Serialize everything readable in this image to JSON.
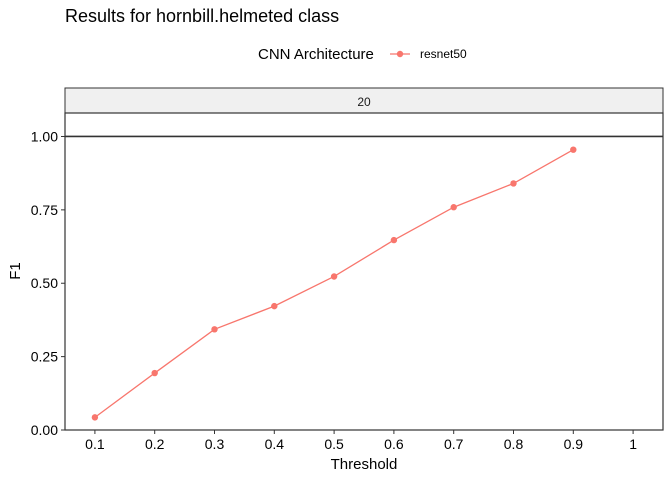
{
  "chart_data": {
    "type": "line",
    "title": "Results for hornbill.helmeted class",
    "xlabel": "Threshold",
    "ylabel": "F1",
    "facet_label": "20",
    "legend": {
      "title": "CNN Architecture",
      "placement": "top"
    },
    "xlim": [
      0.05,
      1.05
    ],
    "ylim": [
      0.0,
      1.08
    ],
    "x_ticks": [
      "0.1",
      "0.2",
      "0.3",
      "0.4",
      "0.5",
      "0.6",
      "0.7",
      "0.8",
      "0.9",
      "1"
    ],
    "y_ticks": [
      "0.00",
      "0.25",
      "0.50",
      "0.75",
      "1.00"
    ],
    "grid": false,
    "series": [
      {
        "name": "resnet50",
        "color": "#f8766d",
        "x": [
          0.1,
          0.2,
          0.3,
          0.4,
          0.5,
          0.6,
          0.7,
          0.8,
          0.9
        ],
        "y": [
          0.043,
          0.194,
          0.343,
          0.422,
          0.523,
          0.647,
          0.759,
          0.84,
          0.955
        ]
      }
    ]
  }
}
